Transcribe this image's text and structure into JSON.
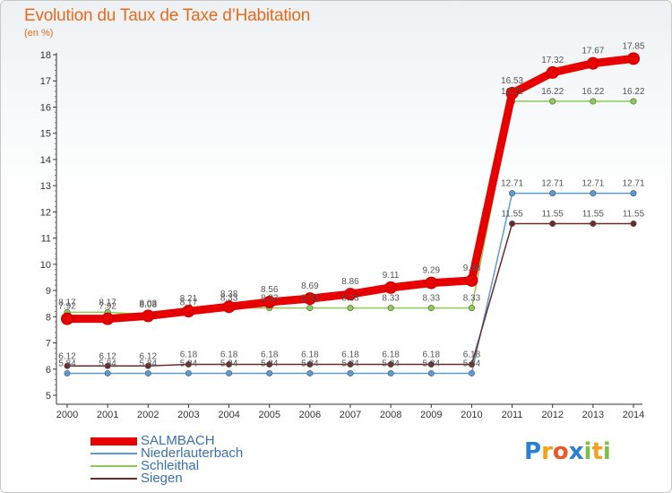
{
  "chart_data": {
    "type": "line",
    "title": "Evolution du Taux de Taxe d’Habitation",
    "unit_label": "(en %)",
    "x": [
      "2000",
      "2001",
      "2002",
      "2003",
      "2004",
      "2005",
      "2006",
      "2007",
      "2008",
      "2009",
      "2010",
      "2011",
      "2012",
      "2013",
      "2014"
    ],
    "ylim": [
      5,
      18
    ],
    "yticks": [
      5,
      6,
      7,
      8,
      9,
      10,
      11,
      12,
      13,
      14,
      15,
      16,
      17,
      18
    ],
    "grid": false,
    "legend_position": "bottom-left",
    "series": [
      {
        "name": "SALMBACH",
        "color": "#e80000",
        "emphasis": true,
        "values": [
          7.92,
          7.92,
          8.03,
          8.21,
          8.38,
          8.56,
          8.69,
          8.86,
          9.11,
          9.29,
          9.38,
          16.53,
          17.32,
          17.67,
          17.85
        ]
      },
      {
        "name": "Niederlauterbach",
        "color": "#5b9bd5",
        "values": [
          5.84,
          5.84,
          5.84,
          5.84,
          5.84,
          5.84,
          5.84,
          5.84,
          5.84,
          5.84,
          5.84,
          12.71,
          12.71,
          12.71,
          12.71
        ]
      },
      {
        "name": "Schleithal",
        "color": "#8ccc50",
        "values": [
          8.17,
          8.17,
          8.08,
          8.17,
          8.33,
          8.33,
          8.33,
          8.33,
          8.33,
          8.33,
          8.33,
          16.22,
          16.22,
          16.22,
          16.22
        ]
      },
      {
        "name": "Siegen",
        "color": "#6b2a2a",
        "values": [
          6.12,
          6.12,
          6.12,
          6.18,
          6.18,
          6.18,
          6.18,
          6.18,
          6.18,
          6.18,
          6.18,
          11.55,
          11.55,
          11.55,
          11.55
        ]
      }
    ],
    "data_labels": {
      "SALMBACH": [
        "7.92",
        "7.92",
        "8.03",
        "8.21",
        "8.38",
        "8.56",
        "8.69",
        "8.86",
        "9.11",
        "9.29",
        "9.38",
        "16.53",
        "17.32",
        "17.67",
        "17.85"
      ],
      "Niederlauterbach": [
        "5.84",
        "5.84",
        "5.84",
        "5.84",
        "5.84",
        "5.84",
        "5.84",
        "5.84",
        "5.84",
        "5.84",
        "5.84",
        "12.71",
        "12.71",
        "12.71",
        "12.71"
      ],
      "Schleithal": [
        "8.17",
        "8.17",
        "8.08",
        "8.17",
        "8.33",
        "8.33",
        "8.33",
        "8.33",
        "8.33",
        "8.33",
        "8.33",
        "16.22",
        "16.22",
        "16.22",
        "16.22"
      ],
      "Siegen": [
        "6.12",
        "6.12",
        "6.12",
        "6.18",
        "6.18",
        "6.18",
        "6.18",
        "6.18",
        "6.18",
        "6.18",
        "6.18",
        "11.55",
        "11.55",
        "11.55",
        "11.55"
      ]
    }
  },
  "logo": {
    "text": "Proxiti",
    "letters": [
      {
        "ch": "P",
        "color": "#2a7fd0"
      },
      {
        "ch": "r",
        "color": "#f2a01e"
      },
      {
        "ch": "o",
        "color": "#e8592a"
      },
      {
        "ch": "x",
        "color": "#2a7fd0"
      },
      {
        "ch": "i",
        "color": "#7cc242"
      },
      {
        "ch": "t",
        "color": "#f2a01e"
      },
      {
        "ch": "i",
        "color": "#7cc242"
      }
    ]
  }
}
